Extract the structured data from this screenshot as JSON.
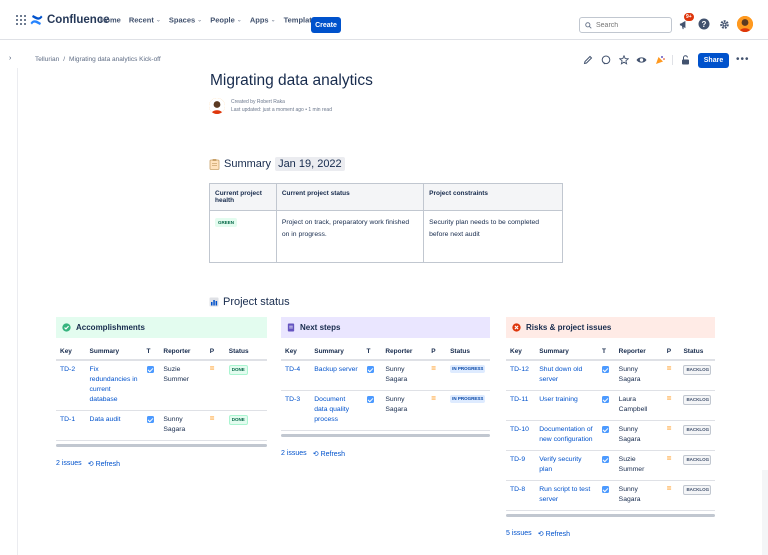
{
  "nav": {
    "app_name": "Confluence",
    "items": [
      {
        "label": "Home",
        "has_chevron": false
      },
      {
        "label": "Recent",
        "has_chevron": true
      },
      {
        "label": "Spaces",
        "has_chevron": true
      },
      {
        "label": "People",
        "has_chevron": true
      },
      {
        "label": "Apps",
        "has_chevron": true
      },
      {
        "label": "Templates",
        "has_chevron": false
      }
    ],
    "create_label": "Create",
    "search_placeholder": "Search",
    "notification_badge": "9+"
  },
  "breadcrumb": {
    "space": "Tellurian",
    "separator": "/",
    "page": "Migrating data analytics Kick-off"
  },
  "page_actions": {
    "share_label": "Share",
    "more_label": "•••"
  },
  "page": {
    "title": "Migrating data analytics",
    "created_by": "Created by Robert Raka",
    "last_updated": "Last updated: just a moment ago • 1 min read"
  },
  "summary": {
    "heading": "Summary",
    "date": "Jan 19, 2022",
    "columns": [
      "Current project health",
      "Current project status",
      "Project constraints"
    ],
    "health": "GREEN",
    "status_text": "Project on track, preparatory work finished on in progress.",
    "constraints_text": "Security plan needs to be completed before next audit"
  },
  "project_status": {
    "heading": "Project status",
    "columns": [
      "Key",
      "Summary",
      "T",
      "Reporter",
      "P",
      "Status"
    ],
    "refresh_label": "Refresh",
    "panels": [
      {
        "title": "Accomplishments",
        "footer_count": "2 issues",
        "rows": [
          {
            "key": "TD-2",
            "summary": "Fix redundancies in current database",
            "reporter": "Suzie Summer",
            "status": "DONE"
          },
          {
            "key": "TD-1",
            "summary": "Data audit",
            "reporter": "Sunny Sagara",
            "status": "DONE"
          }
        ]
      },
      {
        "title": "Next steps",
        "footer_count": "2 issues",
        "rows": [
          {
            "key": "TD-4",
            "summary": "Backup server",
            "reporter": "Sunny Sagara",
            "status": "IN PROGRESS"
          },
          {
            "key": "TD-3",
            "summary": "Document data quality process",
            "reporter": "Sunny Sagara",
            "status": "IN PROGRESS"
          }
        ]
      },
      {
        "title": "Risks & project issues",
        "footer_count": "5 issues",
        "rows": [
          {
            "key": "TD-12",
            "summary": "Shut down old server",
            "reporter": "Sunny Sagara",
            "status": "BACKLOG"
          },
          {
            "key": "TD-11",
            "summary": "User training",
            "reporter": "Laura Campbell",
            "status": "BACKLOG"
          },
          {
            "key": "TD-10",
            "summary": "Documentation of new configuration",
            "reporter": "Sunny Sagara",
            "status": "BACKLOG"
          },
          {
            "key": "TD-9",
            "summary": "Verify security plan",
            "reporter": "Suzie Summer",
            "status": "BACKLOG"
          },
          {
            "key": "TD-8",
            "summary": "Run script to test server",
            "reporter": "Sunny Sagara",
            "status": "BACKLOG"
          }
        ]
      }
    ]
  },
  "colors": {
    "brand_blue": "#0052cc",
    "accomplishments_bg": "#e3fcef",
    "next_steps_bg": "#eae6ff",
    "risks_bg": "#ffebe6",
    "priority_medium": "#ff991f"
  }
}
